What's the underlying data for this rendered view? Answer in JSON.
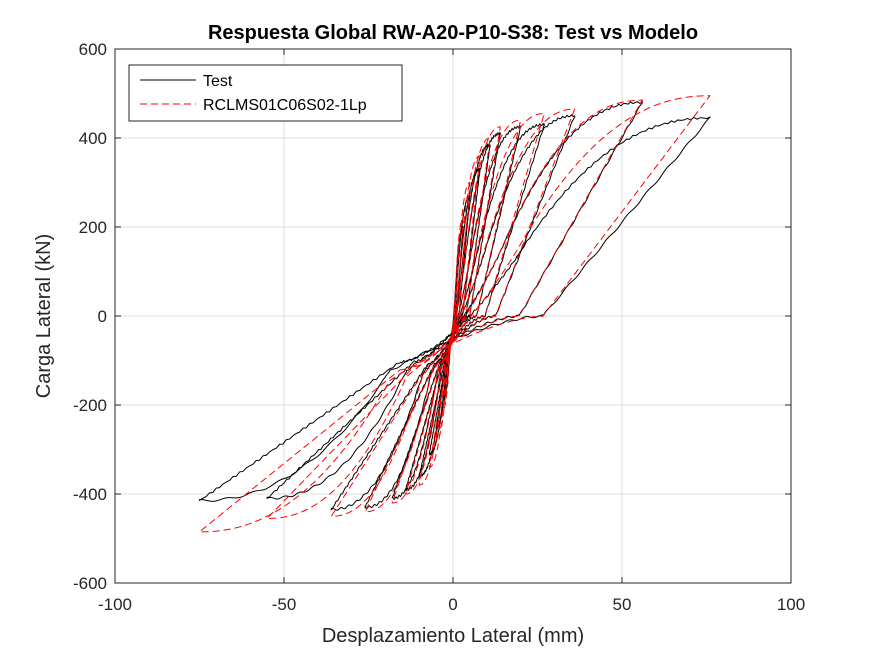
{
  "chart_data": {
    "type": "line",
    "title": "Respuesta Global RW-A20-P10-S38: Test vs Modelo",
    "xlabel": "Desplazamiento Lateral (mm)",
    "ylabel": "Carga Lateral (kN)",
    "xlim": [
      -100,
      100
    ],
    "ylim": [
      -600,
      600
    ],
    "xticks": [
      -100,
      -50,
      0,
      50,
      100
    ],
    "yticks": [
      -600,
      -400,
      -200,
      0,
      200,
      400,
      600
    ],
    "xtick_labels": [
      "-100",
      "-50",
      "0",
      "50",
      "100"
    ],
    "ytick_labels": [
      "-600",
      "-400",
      "-200",
      "0",
      "200",
      "400",
      "600"
    ],
    "grid": true,
    "legend_position": "top-left",
    "series": [
      {
        "name": "Test",
        "color": "#000000",
        "dash": "solid",
        "cycles": [
          {
            "dmax": 3,
            "fmax": 200,
            "dmin": -3,
            "fmin": -190
          },
          {
            "dmax": 5,
            "fmax": 270,
            "dmin": -5,
            "fmin": -250
          },
          {
            "dmax": 8,
            "fmax": 330,
            "dmin": -7,
            "fmin": -310
          },
          {
            "dmax": 11,
            "fmax": 385,
            "dmin": -10,
            "fmin": -360
          },
          {
            "dmax": 14,
            "fmax": 410,
            "dmin": -14,
            "fmin": -390
          },
          {
            "dmax": 20,
            "fmax": 425,
            "dmin": -18,
            "fmin": -410
          },
          {
            "dmax": 27,
            "fmax": 430,
            "dmin": -26,
            "fmin": -430
          },
          {
            "dmax": 36,
            "fmax": 450,
            "dmin": -36,
            "fmin": -435
          },
          {
            "dmax": 56,
            "fmax": 480,
            "dmin": -55,
            "fmin": -410
          },
          {
            "dmax": 76,
            "fmax": 445,
            "dmin": -75,
            "fmin": -415
          }
        ]
      },
      {
        "name": "RCLMS01C06S02-1Lp",
        "color": "#ff0000",
        "dash": "dashed",
        "cycles": [
          {
            "dmax": 3,
            "fmax": 220,
            "dmin": -3,
            "fmin": -210
          },
          {
            "dmax": 5,
            "fmax": 300,
            "dmin": -5,
            "fmin": -280
          },
          {
            "dmax": 8,
            "fmax": 360,
            "dmin": -7,
            "fmin": -340
          },
          {
            "dmax": 11,
            "fmax": 400,
            "dmin": -10,
            "fmin": -380
          },
          {
            "dmax": 14,
            "fmax": 425,
            "dmin": -14,
            "fmin": -400
          },
          {
            "dmax": 20,
            "fmax": 440,
            "dmin": -18,
            "fmin": -420
          },
          {
            "dmax": 27,
            "fmax": 455,
            "dmin": -26,
            "fmin": -440
          },
          {
            "dmax": 36,
            "fmax": 465,
            "dmin": -36,
            "fmin": -450
          },
          {
            "dmax": 56,
            "fmax": 485,
            "dmin": -55,
            "fmin": -455
          },
          {
            "dmax": 76,
            "fmax": 495,
            "dmin": -75,
            "fmin": -485
          }
        ]
      }
    ]
  }
}
